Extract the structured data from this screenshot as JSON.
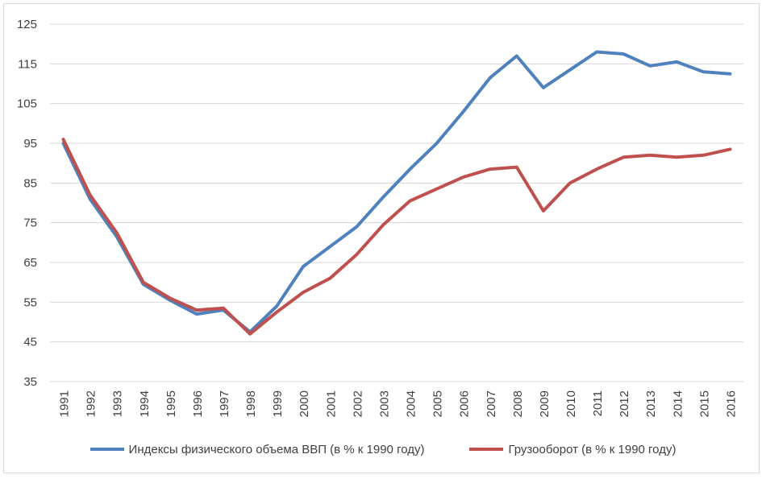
{
  "chart_data": {
    "type": "line",
    "title": "",
    "xlabel": "",
    "ylabel": "",
    "ylim": [
      35,
      125
    ],
    "yticks": [
      35,
      45,
      55,
      65,
      75,
      85,
      95,
      105,
      115,
      125
    ],
    "grid": "horizontal",
    "legend_position": "bottom",
    "categories": [
      "1991",
      "1992",
      "1993",
      "1994",
      "1995",
      "1996",
      "1997",
      "1998",
      "1999",
      "2000",
      "2001",
      "2002",
      "2003",
      "2004",
      "2005",
      "2006",
      "2007",
      "2008",
      "2009",
      "2010",
      "2011",
      "2012",
      "2013",
      "2014",
      "2015",
      "2016"
    ],
    "series": [
      {
        "name": "Индексы физического объема ВВП (в % к 1990 году)",
        "color": "#4f81bd",
        "values": [
          95,
          81,
          71.5,
          59.5,
          55.5,
          52,
          53,
          47.5,
          54,
          64,
          69,
          74,
          81.5,
          88.5,
          95,
          103,
          111.5,
          117,
          109,
          113.5,
          118,
          117.5,
          114.5,
          115.5,
          113,
          112.5
        ]
      },
      {
        "name": "Грузооборот (в % к 1990 году)",
        "color": "#c0504d",
        "values": [
          96,
          82,
          72.5,
          60,
          56,
          53,
          53.5,
          47,
          52.5,
          57.5,
          61,
          67,
          74.5,
          80.5,
          83.5,
          86.5,
          88.5,
          89,
          78,
          85,
          88.5,
          91.5,
          92,
          91.5,
          92,
          93.5
        ]
      }
    ]
  }
}
